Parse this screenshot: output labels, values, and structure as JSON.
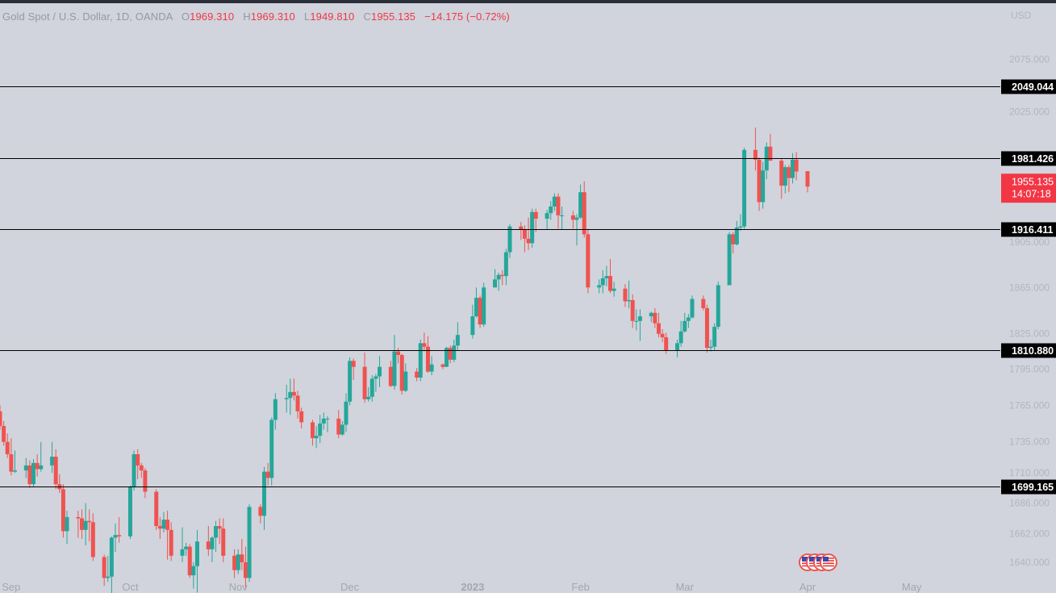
{
  "header": {
    "symbol": "Gold Spot / U.S. Dollar, 1D, OANDA",
    "open_label": "O",
    "open": "1969.310",
    "high_label": "H",
    "high": "1969.310",
    "low_label": "L",
    "low": "1949.810",
    "close_label": "C",
    "close": "1955.135",
    "change": "−14.175 (−0.72%)"
  },
  "price_axis": {
    "currency": "USD",
    "ticks": [
      "2075.000",
      "2025.000",
      "1905.000",
      "1865.000",
      "1825.000",
      "1795.000",
      "1765.000",
      "1735.000",
      "1710.000",
      "1686.000",
      "1662.000",
      "1640.000"
    ]
  },
  "time_axis": {
    "labels": [
      "Sep",
      "Oct",
      "Nov",
      "Dec",
      "2023",
      "Feb",
      "Mar",
      "Apr",
      "May"
    ]
  },
  "last_price": {
    "price": "1955.135",
    "countdown": "14:07:18",
    "color": "#f23645"
  },
  "colors": {
    "up": "#26a69a",
    "down": "#ef5350",
    "background": "#d1d4dc",
    "line": "#000000"
  },
  "chart_data": {
    "type": "candlestick",
    "symbol": "Gold Spot / U.S. Dollar",
    "interval": "1D",
    "ylim": [
      1630,
      2100
    ],
    "y_scale": "log",
    "horizontal_levels": [
      2049.044,
      1981.426,
      1916.411,
      1810.88,
      1699.165
    ],
    "ohlc": [
      [
        "2022-08-29",
        1760,
        1765,
        1745,
        1748
      ],
      [
        "2022-08-30",
        1748,
        1752,
        1732,
        1735
      ],
      [
        "2022-08-31",
        1735,
        1742,
        1722,
        1725
      ],
      [
        "2022-09-01",
        1725,
        1738,
        1708,
        1711
      ],
      [
        "2022-09-02",
        1711,
        1728,
        1710,
        1712
      ],
      [
        "2022-09-05",
        1712,
        1722,
        1706,
        1716
      ],
      [
        "2022-09-06",
        1716,
        1720,
        1698,
        1701
      ],
      [
        "2022-09-07",
        1701,
        1721,
        1699,
        1718
      ],
      [
        "2022-09-08",
        1718,
        1725,
        1707,
        1713
      ],
      [
        "2022-09-09",
        1713,
        1735,
        1711,
        1716
      ],
      [
        "2022-09-12",
        1716,
        1735,
        1710,
        1723
      ],
      [
        "2022-09-13",
        1723,
        1729,
        1697,
        1701
      ],
      [
        "2022-09-14",
        1701,
        1709,
        1694,
        1697
      ],
      [
        "2022-09-15",
        1697,
        1701,
        1659,
        1664
      ],
      [
        "2022-09-16",
        1664,
        1680,
        1654,
        1675
      ],
      [
        "2022-09-19",
        1675,
        1680,
        1659,
        1674
      ],
      [
        "2022-09-20",
        1674,
        1681,
        1658,
        1665
      ],
      [
        "2022-09-21",
        1665,
        1686,
        1653,
        1672
      ],
      [
        "2022-09-22",
        1672,
        1681,
        1656,
        1671
      ],
      [
        "2022-09-23",
        1671,
        1678,
        1641,
        1644
      ],
      [
        "2022-09-26",
        1644,
        1646,
        1622,
        1628
      ],
      [
        "2022-09-27",
        1628,
        1645,
        1625,
        1629
      ],
      [
        "2022-09-28",
        1629,
        1660,
        1615,
        1659
      ],
      [
        "2022-09-29",
        1659,
        1670,
        1648,
        1661
      ],
      [
        "2022-09-30",
        1661,
        1675,
        1655,
        1660
      ],
      [
        "2022-10-03",
        1660,
        1700,
        1658,
        1699
      ],
      [
        "2022-10-04",
        1699,
        1728,
        1696,
        1725
      ],
      [
        "2022-10-05",
        1725,
        1729,
        1705,
        1716
      ],
      [
        "2022-10-06",
        1716,
        1718,
        1706,
        1712
      ],
      [
        "2022-10-07",
        1712,
        1714,
        1690,
        1695
      ],
      [
        "2022-10-10",
        1695,
        1697,
        1665,
        1668
      ],
      [
        "2022-10-11",
        1668,
        1675,
        1658,
        1666
      ],
      [
        "2022-10-12",
        1666,
        1679,
        1663,
        1673
      ],
      [
        "2022-10-13",
        1673,
        1680,
        1642,
        1665
      ],
      [
        "2022-10-14",
        1665,
        1671,
        1641,
        1645
      ],
      [
        "2022-10-17",
        1645,
        1667,
        1640,
        1650
      ],
      [
        "2022-10-18",
        1650,
        1655,
        1645,
        1652
      ],
      [
        "2022-10-19",
        1652,
        1654,
        1628,
        1630
      ],
      [
        "2022-10-20",
        1630,
        1640,
        1620,
        1637
      ],
      [
        "2022-10-21",
        1637,
        1665,
        1617,
        1656
      ],
      [
        "2022-10-24",
        1656,
        1668,
        1645,
        1650
      ],
      [
        "2022-10-25",
        1650,
        1660,
        1640,
        1659
      ],
      [
        "2022-10-26",
        1659,
        1672,
        1648,
        1668
      ],
      [
        "2022-10-27",
        1668,
        1674,
        1654,
        1666
      ],
      [
        "2022-10-28",
        1666,
        1674,
        1640,
        1645
      ],
      [
        "2022-10-31",
        1645,
        1650,
        1628,
        1634
      ],
      [
        "2022-11-01",
        1634,
        1650,
        1631,
        1646
      ],
      [
        "2022-11-02",
        1646,
        1658,
        1634,
        1640
      ],
      [
        "2022-11-03",
        1640,
        1652,
        1620,
        1628
      ],
      [
        "2022-11-04",
        1628,
        1685,
        1625,
        1683
      ],
      [
        "2022-11-07",
        1683,
        1685,
        1670,
        1676
      ],
      [
        "2022-11-08",
        1676,
        1715,
        1665,
        1711
      ],
      [
        "2022-11-09",
        1711,
        1718,
        1700,
        1706
      ],
      [
        "2022-11-10",
        1706,
        1755,
        1700,
        1753
      ],
      [
        "2022-11-11",
        1753,
        1775,
        1745,
        1770
      ],
      [
        "2022-11-14",
        1770,
        1782,
        1759,
        1771
      ],
      [
        "2022-11-15",
        1771,
        1787,
        1757,
        1776
      ],
      [
        "2022-11-16",
        1776,
        1787,
        1769,
        1773
      ],
      [
        "2022-11-17",
        1773,
        1777,
        1754,
        1760
      ],
      [
        "2022-11-18",
        1760,
        1763,
        1746,
        1751
      ],
      [
        "2022-11-21",
        1751,
        1753,
        1732,
        1738
      ],
      [
        "2022-11-22",
        1738,
        1748,
        1730,
        1740
      ],
      [
        "2022-11-23",
        1740,
        1757,
        1734,
        1750
      ],
      [
        "2022-11-24",
        1750,
        1759,
        1745,
        1754
      ],
      [
        "2022-11-25",
        1754,
        1756,
        1743,
        1754
      ],
      [
        "2022-11-28",
        1754,
        1761,
        1738,
        1741
      ],
      [
        "2022-11-29",
        1741,
        1752,
        1740,
        1749
      ],
      [
        "2022-11-30",
        1749,
        1775,
        1743,
        1768
      ],
      [
        "2022-12-01",
        1768,
        1805,
        1765,
        1802
      ],
      [
        "2022-12-02",
        1802,
        1804,
        1786,
        1797
      ],
      [
        "2022-12-05",
        1797,
        1809,
        1767,
        1770
      ],
      [
        "2022-12-06",
        1770,
        1780,
        1768,
        1772
      ],
      [
        "2022-12-07",
        1772,
        1790,
        1768,
        1787
      ],
      [
        "2022-12-08",
        1787,
        1791,
        1776,
        1789
      ],
      [
        "2022-12-09",
        1789,
        1806,
        1780,
        1797
      ],
      [
        "2022-12-12",
        1797,
        1802,
        1780,
        1781
      ],
      [
        "2022-12-13",
        1781,
        1824,
        1778,
        1810
      ],
      [
        "2022-12-14",
        1810,
        1813,
        1800,
        1807
      ],
      [
        "2022-12-15",
        1807,
        1808,
        1774,
        1777
      ],
      [
        "2022-12-16",
        1777,
        1800,
        1776,
        1793
      ],
      [
        "2022-12-19",
        1793,
        1796,
        1785,
        1788
      ],
      [
        "2022-12-20",
        1788,
        1820,
        1785,
        1817
      ],
      [
        "2022-12-21",
        1817,
        1826,
        1810,
        1814
      ],
      [
        "2022-12-22",
        1814,
        1823,
        1792,
        1793
      ],
      [
        "2022-12-23",
        1793,
        1806,
        1790,
        1799
      ],
      [
        "2022-12-26",
        1799,
        1800,
        1795,
        1797
      ],
      [
        "2022-12-27",
        1797,
        1814,
        1797,
        1813
      ],
      [
        "2022-12-28",
        1813,
        1815,
        1800,
        1803
      ],
      [
        "2022-12-29",
        1803,
        1820,
        1801,
        1815
      ],
      [
        "2022-12-30",
        1815,
        1835,
        1811,
        1824
      ],
      [
        "2023-01-03",
        1824,
        1850,
        1821,
        1840
      ],
      [
        "2023-01-04",
        1840,
        1865,
        1839,
        1856
      ],
      [
        "2023-01-05",
        1856,
        1858,
        1830,
        1833
      ],
      [
        "2023-01-06",
        1833,
        1869,
        1831,
        1865
      ],
      [
        "2023-01-09",
        1865,
        1881,
        1865,
        1872
      ],
      [
        "2023-01-10",
        1872,
        1878,
        1862,
        1876
      ],
      [
        "2023-01-11",
        1876,
        1880,
        1867,
        1875
      ],
      [
        "2023-01-12",
        1875,
        1899,
        1867,
        1896
      ],
      [
        "2023-01-13",
        1896,
        1921,
        1891,
        1919
      ],
      [
        "2023-01-16",
        1919,
        1923,
        1907,
        1916
      ],
      [
        "2023-01-17",
        1916,
        1920,
        1896,
        1908
      ],
      [
        "2023-01-18",
        1908,
        1927,
        1898,
        1904
      ],
      [
        "2023-01-19",
        1904,
        1935,
        1900,
        1932
      ],
      [
        "2023-01-20",
        1932,
        1935,
        1914,
        1926
      ],
      [
        "2023-01-23",
        1926,
        1934,
        1916,
        1931
      ],
      [
        "2023-01-24",
        1931,
        1942,
        1925,
        1937
      ],
      [
        "2023-01-25",
        1937,
        1949,
        1933,
        1946
      ],
      [
        "2023-01-26",
        1946,
        1949,
        1917,
        1929
      ],
      [
        "2023-01-27",
        1929,
        1937,
        1916,
        1929
      ],
      [
        "2023-01-30",
        1929,
        1933,
        1917,
        1925
      ],
      [
        "2023-01-31",
        1925,
        1930,
        1902,
        1927
      ],
      [
        "2023-02-01",
        1927,
        1957,
        1926,
        1950
      ],
      [
        "2023-02-02",
        1950,
        1960,
        1909,
        1912
      ],
      [
        "2023-02-03",
        1912,
        1917,
        1860,
        1865
      ],
      [
        "2023-02-06",
        1865,
        1872,
        1860,
        1867
      ],
      [
        "2023-02-07",
        1867,
        1880,
        1860,
        1873
      ],
      [
        "2023-02-08",
        1873,
        1884,
        1866,
        1875
      ],
      [
        "2023-02-09",
        1875,
        1890,
        1860,
        1862
      ],
      [
        "2023-02-10",
        1862,
        1870,
        1857,
        1864
      ],
      [
        "2023-02-13",
        1864,
        1868,
        1848,
        1853
      ],
      [
        "2023-02-14",
        1853,
        1871,
        1847,
        1854
      ],
      [
        "2023-02-15",
        1854,
        1859,
        1830,
        1836
      ],
      [
        "2023-02-16",
        1836,
        1846,
        1828,
        1836
      ],
      [
        "2023-02-17",
        1836,
        1846,
        1819,
        1840
      ],
      [
        "2023-02-20",
        1840,
        1844,
        1835,
        1843
      ],
      [
        "2023-02-21",
        1843,
        1847,
        1830,
        1834
      ],
      [
        "2023-02-22",
        1834,
        1843,
        1822,
        1825
      ],
      [
        "2023-02-23",
        1825,
        1829,
        1818,
        1822
      ],
      [
        "2023-02-24",
        1822,
        1826,
        1808,
        1811
      ],
      [
        "2023-02-27",
        1811,
        1820,
        1805,
        1817
      ],
      [
        "2023-02-28",
        1817,
        1836,
        1814,
        1827
      ],
      [
        "2023-03-01",
        1827,
        1843,
        1826,
        1836
      ],
      [
        "2023-03-02",
        1836,
        1842,
        1830,
        1839
      ],
      [
        "2023-03-03",
        1839,
        1858,
        1838,
        1855
      ],
      [
        "2023-03-06",
        1855,
        1858,
        1845,
        1847
      ],
      [
        "2023-03-07",
        1847,
        1850,
        1809,
        1813
      ],
      [
        "2023-03-08",
        1813,
        1820,
        1810,
        1814
      ],
      [
        "2023-03-09",
        1814,
        1834,
        1811,
        1831
      ],
      [
        "2023-03-10",
        1831,
        1870,
        1829,
        1867
      ],
      [
        "2023-03-13",
        1867,
        1914,
        1867,
        1912
      ],
      [
        "2023-03-14",
        1912,
        1914,
        1895,
        1903
      ],
      [
        "2023-03-15",
        1903,
        1924,
        1902,
        1918
      ],
      [
        "2023-03-16",
        1918,
        1930,
        1915,
        1919
      ],
      [
        "2023-03-17",
        1919,
        1991,
        1917,
        1989
      ],
      [
        "2023-03-20",
        1989,
        2010,
        1970,
        1980
      ],
      [
        "2023-03-21",
        1980,
        1982,
        1933,
        1941
      ],
      [
        "2023-03-22",
        1941,
        1978,
        1935,
        1970
      ],
      [
        "2023-03-23",
        1970,
        1996,
        1962,
        1992
      ],
      [
        "2023-03-24",
        1992,
        2004,
        1980,
        1979
      ],
      [
        "2023-03-27",
        1979,
        1981,
        1944,
        1956
      ],
      [
        "2023-03-28",
        1956,
        1975,
        1949,
        1973
      ],
      [
        "2023-03-29",
        1973,
        1975,
        1950,
        1963
      ],
      [
        "2023-03-30",
        1963,
        1986,
        1958,
        1980
      ],
      [
        "2023-03-31",
        1980,
        1987,
        1961,
        1969
      ],
      [
        "2023-04-03",
        1969.31,
        1969.31,
        1949.81,
        1955.135
      ]
    ]
  }
}
